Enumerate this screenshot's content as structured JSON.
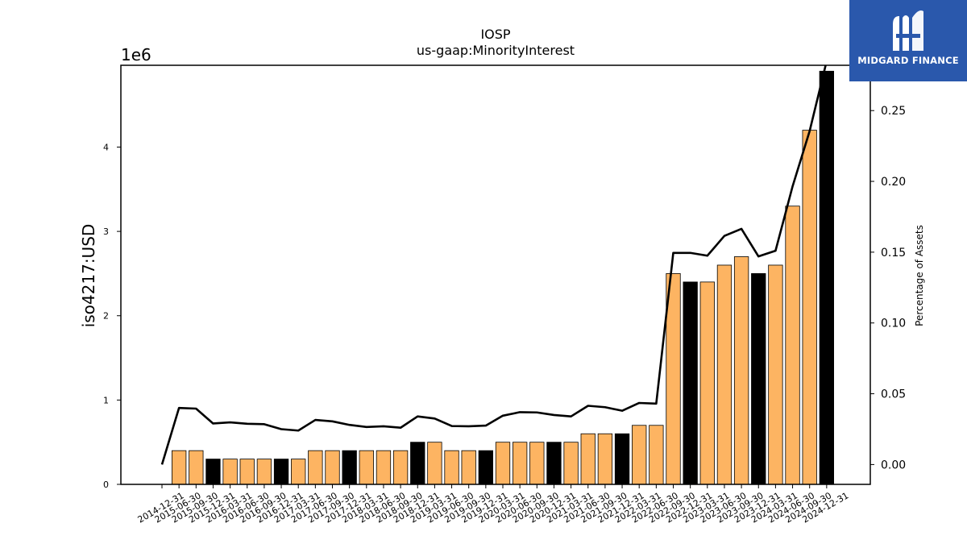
{
  "brand": {
    "name": "MIDGARD FINANCE",
    "icon": "midgard-m-logo-icon",
    "bg_color": "#2a58ac"
  },
  "chart_data": {
    "type": "bar",
    "title": "IOSP",
    "subtitle": "us-gaap:MinorityInterest",
    "ylabel": "iso4217:USD",
    "y_offset_label": "1e6",
    "y2label": "Percentage of Assets",
    "ylim": [
      0,
      4.97
    ],
    "y2lim": [
      -0.014,
      0.282
    ],
    "yticks": [
      0,
      1,
      2,
      3,
      4
    ],
    "y2ticks": [
      0.0,
      0.05,
      0.1,
      0.15,
      0.2,
      0.25
    ],
    "categories": [
      "2014-12-31",
      "2015-06-30",
      "2015-09-30",
      "2015-12-31",
      "2016-03-31",
      "2016-06-30",
      "2016-09-30",
      "2016-12-31",
      "2017-03-31",
      "2017-06-30",
      "2017-09-30",
      "2017-12-31",
      "2018-03-31",
      "2018-06-30",
      "2018-09-30",
      "2018-12-31",
      "2019-03-31",
      "2019-06-30",
      "2019-09-30",
      "2019-12-31",
      "2020-03-31",
      "2020-06-30",
      "2020-09-30",
      "2020-12-31",
      "2021-03-31",
      "2021-06-30",
      "2021-09-30",
      "2021-12-31",
      "2022-03-31",
      "2022-06-30",
      "2022-09-30",
      "2022-12-31",
      "2023-03-31",
      "2023-06-30",
      "2023-09-30",
      "2023-12-31",
      "2024-03-31",
      "2024-06-30",
      "2024-09-30",
      "2024-12-31"
    ],
    "series": [
      {
        "type": "bar",
        "unit": "1e6 USD",
        "values": [
          null,
          0.4,
          0.4,
          0.3,
          0.3,
          0.3,
          0.3,
          0.3,
          0.3,
          0.4,
          0.4,
          0.4,
          0.4,
          0.4,
          0.4,
          0.5,
          0.5,
          0.4,
          0.4,
          0.4,
          0.5,
          0.5,
          0.5,
          0.5,
          0.5,
          0.6,
          0.6,
          0.6,
          0.7,
          0.7,
          2.5,
          2.4,
          2.4,
          2.6,
          2.7,
          2.5,
          2.6,
          3.3,
          4.2,
          4.9
        ],
        "year_end": [
          false,
          false,
          false,
          true,
          false,
          false,
          false,
          true,
          false,
          false,
          false,
          true,
          false,
          false,
          false,
          true,
          false,
          false,
          false,
          true,
          false,
          false,
          false,
          true,
          false,
          false,
          false,
          true,
          false,
          false,
          false,
          true,
          false,
          false,
          false,
          true,
          false,
          false,
          false,
          true
        ]
      },
      {
        "name": "Percentage of Assets",
        "type": "line",
        "axis": "right",
        "values": [
          0.0,
          0.04,
          0.0395,
          0.029,
          0.0298,
          0.0288,
          0.0285,
          0.025,
          0.024,
          0.0315,
          0.0305,
          0.028,
          0.0265,
          0.027,
          0.026,
          0.034,
          0.0325,
          0.0272,
          0.027,
          0.0275,
          0.0345,
          0.037,
          0.0368,
          0.035,
          0.034,
          0.0415,
          0.0405,
          0.038,
          0.0435,
          0.043,
          0.1495,
          0.1495,
          0.1475,
          0.1615,
          0.1665,
          0.147,
          0.151,
          0.1965,
          0.2355,
          0.285
        ]
      }
    ],
    "colors": {
      "bar": "#fdb462",
      "bar_year_end": "#000000",
      "line": "#000000"
    },
    "grid": false,
    "legend": "none"
  }
}
